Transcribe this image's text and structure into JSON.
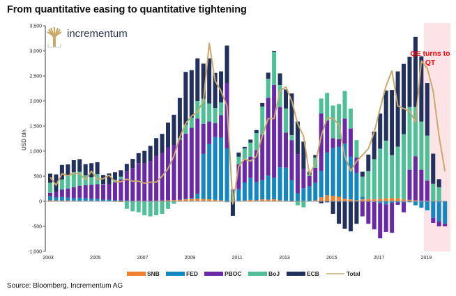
{
  "title": "From quantitative easing to quantitative tightening",
  "source": "Source: Bloomberg, Incrementum AG",
  "logo": {
    "text": "incrementum",
    "icon": "tree-icon"
  },
  "chart_data": {
    "type": "bar",
    "stacked": true,
    "title": "From quantitative easing to quantitative tightening",
    "xlabel": "",
    "ylabel": "USD bln.",
    "ylim": [
      -1000,
      3500
    ],
    "yticks": [
      -1000,
      -500,
      0,
      500,
      1000,
      1500,
      2000,
      2500,
      3000,
      3500
    ],
    "ytick_labels": [
      "-1,000",
      "-500",
      "0",
      "500",
      "1,000",
      "1,500",
      "2,000",
      "2,500",
      "3,000",
      "3,500"
    ],
    "xtick_labels": [
      "2003",
      "2005",
      "2007",
      "2009",
      "2011",
      "2013",
      "2015",
      "2017",
      "2019"
    ],
    "frequency": "quarterly",
    "x_start": "2003Q1",
    "legend": "bottom",
    "annotation": {
      "text_line1": "QE turns to",
      "text_line2": "QT",
      "shaded_from": "2019Q1",
      "shaded_to": "2019Q4"
    },
    "colors": {
      "SNB": "#f07f2e",
      "FED": "#1486c0",
      "PBOC": "#6a2aa8",
      "BoJ": "#4fbf98",
      "ECB": "#22305e",
      "Total": "#c9a86a"
    },
    "series": [
      {
        "name": "SNB",
        "values": [
          20,
          15,
          15,
          15,
          10,
          10,
          10,
          10,
          10,
          5,
          5,
          -10,
          -15,
          5,
          5,
          10,
          5,
          5,
          10,
          15,
          20,
          25,
          30,
          40,
          45,
          50,
          45,
          40,
          30,
          20,
          5,
          15,
          10,
          15,
          30,
          20,
          40,
          35,
          40,
          20,
          10,
          -10,
          0,
          10,
          0,
          20,
          80,
          120,
          110,
          90,
          50,
          40,
          20,
          40,
          50,
          40,
          50,
          60,
          70,
          60,
          40,
          30,
          20,
          10,
          10,
          10,
          10,
          0
        ]
      },
      {
        "name": "FED",
        "values": [
          80,
          60,
          70,
          60,
          50,
          60,
          50,
          40,
          40,
          30,
          30,
          20,
          20,
          10,
          0,
          0,
          0,
          0,
          0,
          0,
          0,
          0,
          0,
          10,
          20,
          100,
          900,
          1100,
          1250,
          1250,
          1050,
          200,
          230,
          360,
          440,
          360,
          380,
          480,
          430,
          660,
          660,
          420,
          160,
          250,
          300,
          350,
          520,
          850,
          950,
          1000,
          1100,
          850,
          550,
          50,
          0,
          -10,
          -40,
          -60,
          -30,
          -20,
          -20,
          -20,
          -80,
          -130,
          -180,
          -330,
          -400,
          -450
        ]
      },
      {
        "name": "PBOC",
        "values": [
          70,
          110,
          150,
          180,
          220,
          240,
          260,
          280,
          290,
          300,
          300,
          360,
          420,
          580,
          660,
          750,
          750,
          800,
          900,
          950,
          1050,
          1100,
          1200,
          1300,
          1400,
          1500,
          600,
          450,
          280,
          450,
          1300,
          20,
          500,
          460,
          420,
          640,
          910,
          1550,
          1850,
          1200,
          700,
          800,
          780,
          380,
          200,
          300,
          1150,
          640,
          200,
          150,
          500,
          560,
          300,
          -300,
          -450,
          -550,
          -700,
          -550,
          -600,
          -50,
          -200,
          600,
          880,
          620,
          400,
          -100,
          -100,
          -50
        ]
      },
      {
        "name": "BoJ",
        "values": [
          200,
          0,
          200,
          250,
          300,
          280,
          200,
          150,
          200,
          10,
          0,
          50,
          50,
          -150,
          -200,
          -220,
          -280,
          -300,
          -280,
          -250,
          -150,
          -50,
          30,
          180,
          200,
          350,
          500,
          360,
          300,
          250,
          -20,
          -10,
          150,
          220,
          280,
          340,
          560,
          380,
          660,
          440,
          480,
          100,
          -80,
          -120,
          30,
          200,
          300,
          550,
          650,
          700,
          550,
          400,
          350,
          400,
          550,
          800,
          1000,
          1150,
          850,
          1030,
          1300,
          1250,
          980,
          960,
          900,
          340,
          270,
          0
        ]
      },
      {
        "name": "ECB",
        "values": [
          180,
          350,
          290,
          230,
          240,
          250,
          220,
          280,
          240,
          180,
          220,
          150,
          130,
          150,
          180,
          200,
          250,
          300,
          350,
          380,
          500,
          600,
          800,
          1050,
          950,
          850,
          700,
          900,
          700,
          620,
          750,
          -280,
          80,
          30,
          60,
          60,
          70,
          120,
          20,
          230,
          380,
          830,
          650,
          550,
          60,
          50,
          -40,
          -20,
          -250,
          -450,
          -550,
          -600,
          -450,
          100,
          330,
          550,
          700,
          1000,
          1300,
          1500,
          1400,
          1000,
          1400,
          1300,
          1050,
          600,
          160,
          0
        ]
      },
      {
        "name": "Total",
        "type": "line",
        "values": [
          480,
          320,
          550,
          510,
          560,
          550,
          430,
          600,
          440,
          450,
          520,
          390,
          390,
          440,
          400,
          400,
          360,
          380,
          380,
          500,
          650,
          900,
          1280,
          1550,
          1700,
          1780,
          2000,
          3150,
          2400,
          2200,
          1900,
          -50,
          700,
          840,
          800,
          900,
          1300,
          1650,
          1650,
          2200,
          2280,
          2000,
          1550,
          1300,
          530,
          750,
          1300,
          1660,
          1650,
          1530,
          900,
          600,
          800,
          920,
          1050,
          1380,
          1850,
          2300,
          2600,
          1900,
          1850,
          1800,
          1580,
          2800,
          2650,
          2200,
          1300,
          600
        ]
      }
    ]
  }
}
